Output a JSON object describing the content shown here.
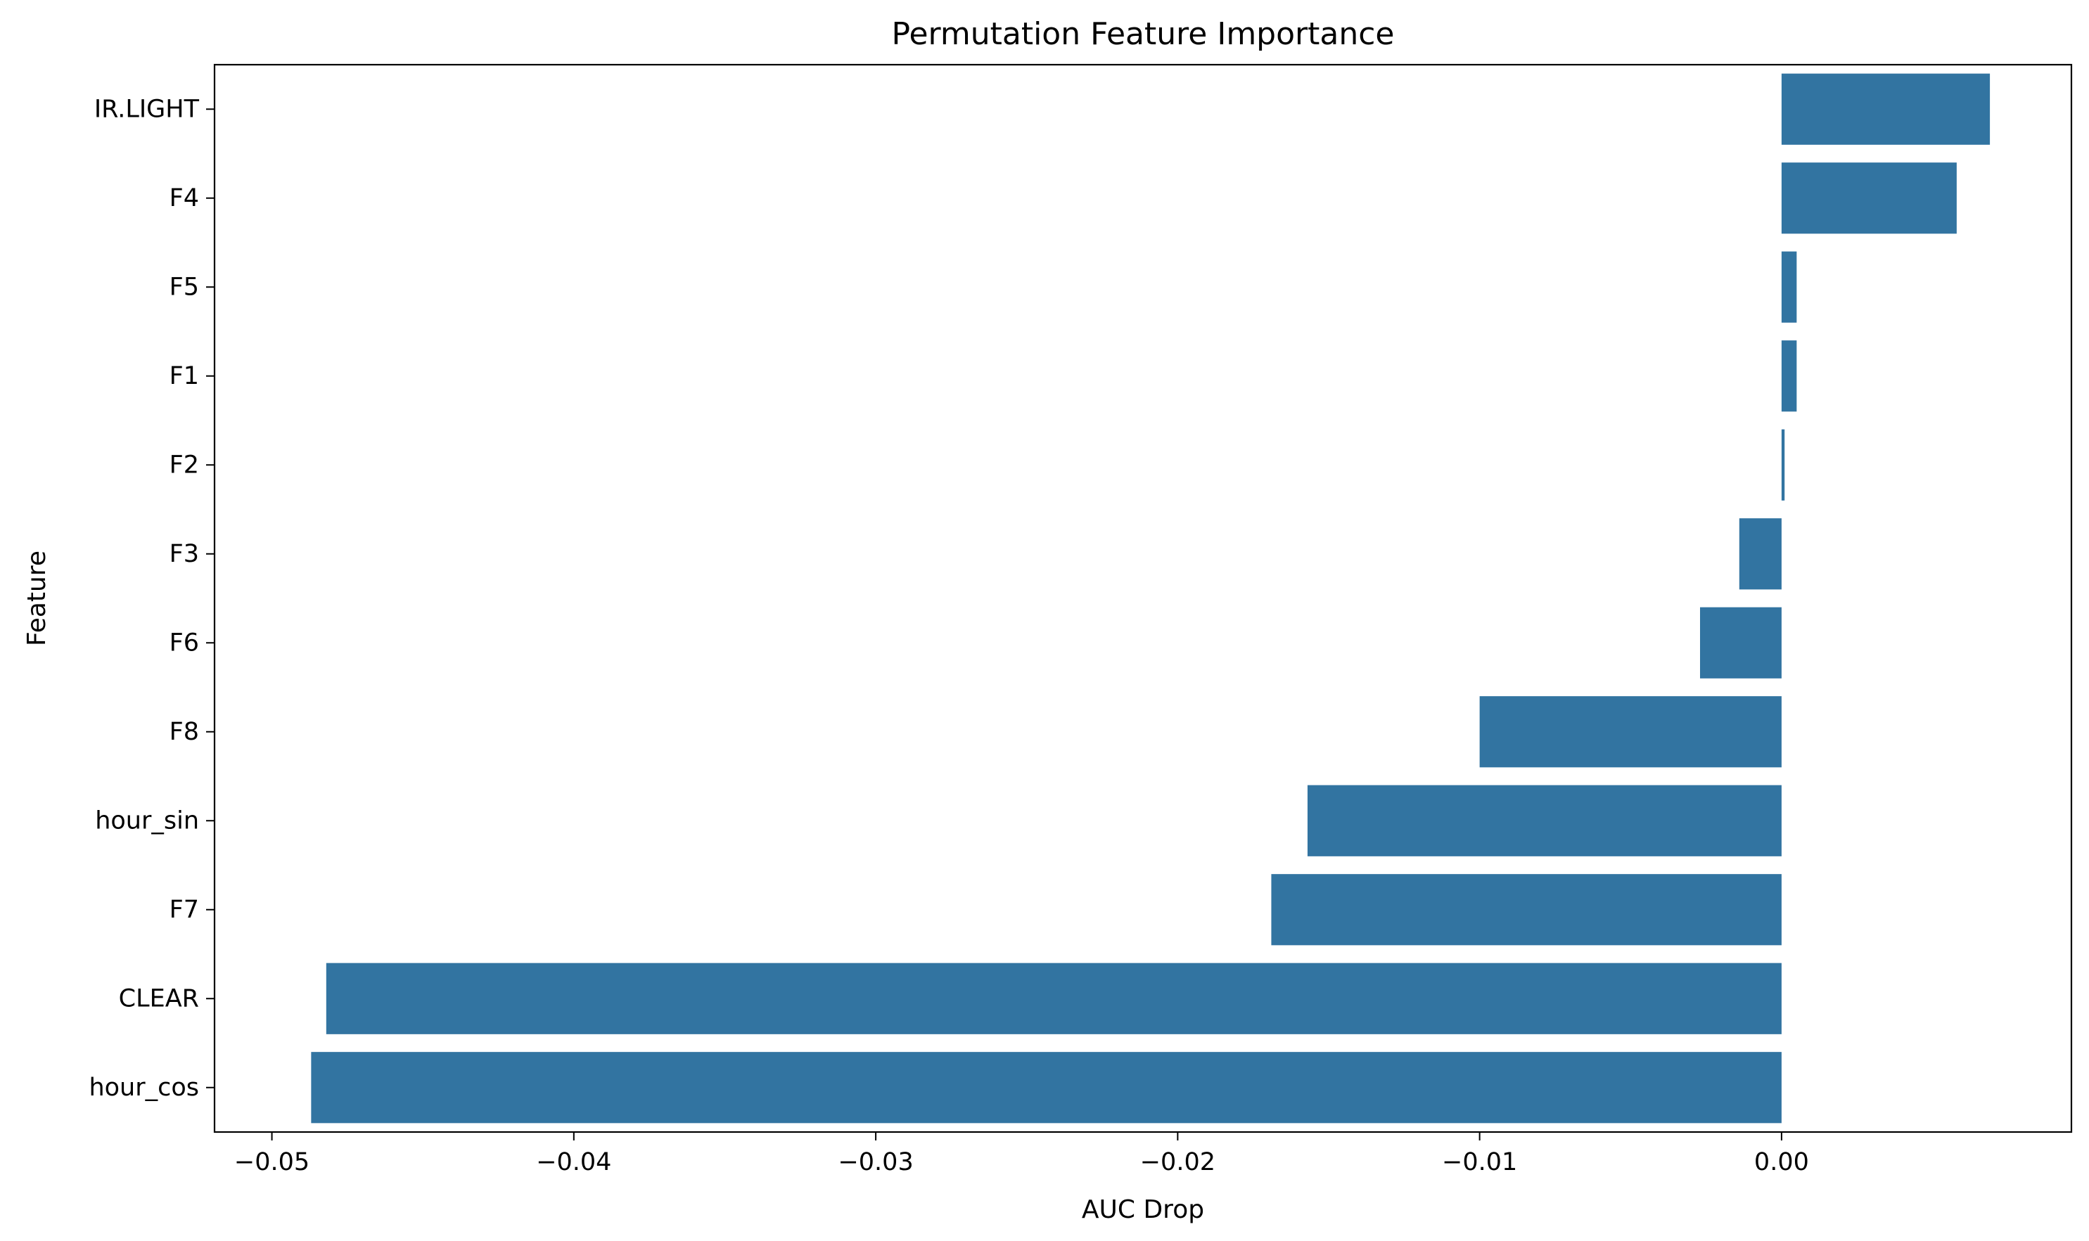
{
  "chart_data": {
    "type": "bar",
    "orientation": "horizontal",
    "title": "Permutation Feature Importance",
    "xlabel": "AUC Drop",
    "ylabel": "Feature",
    "categories": [
      "IR.LIGHT",
      "F4",
      "F5",
      "F1",
      "F2",
      "F3",
      "F6",
      "F8",
      "hour_sin",
      "F7",
      "CLEAR",
      "hour_cos"
    ],
    "values": [
      0.0069,
      0.0058,
      0.0005,
      0.0005,
      0.0001,
      -0.0014,
      -0.0027,
      -0.01,
      -0.0157,
      -0.0169,
      -0.0482,
      -0.0487
    ],
    "xlim": [
      -0.0519,
      0.0096
    ],
    "xticks": [
      -0.05,
      -0.04,
      -0.03,
      -0.02,
      -0.01,
      0.0
    ],
    "xtick_labels": [
      "−0.05",
      "−0.04",
      "−0.03",
      "−0.02",
      "−0.01",
      "0.00"
    ],
    "bar_color": "#3274a1",
    "grid": false,
    "legend": "none"
  }
}
